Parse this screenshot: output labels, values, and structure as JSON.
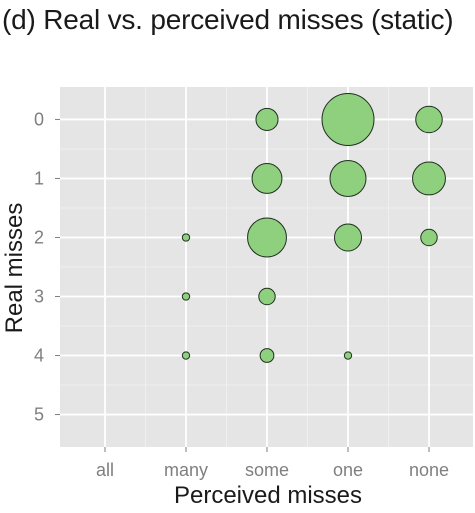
{
  "chart_data": {
    "type": "scatter",
    "title": "(d) Real vs. perceived misses (static)",
    "xlabel": "Perceived misses",
    "ylabel": "Real misses",
    "x_categories": [
      "all",
      "many",
      "some",
      "one",
      "none"
    ],
    "y_ticks": [
      "0",
      "1",
      "2",
      "3",
      "4",
      "5"
    ],
    "ylim": [
      -0.55,
      5.55
    ],
    "grid": true,
    "legend": "none",
    "point_fill": "#8fd07f",
    "point_stroke": "#1f2e1f",
    "panel_background": "#e5e5e5",
    "points": [
      {
        "x": "some",
        "y": 0,
        "size": 0.18
      },
      {
        "x": "one",
        "y": 0,
        "size": 1.0
      },
      {
        "x": "none",
        "y": 0,
        "size": 0.26
      },
      {
        "x": "some",
        "y": 1,
        "size": 0.33
      },
      {
        "x": "one",
        "y": 1,
        "size": 0.48
      },
      {
        "x": "none",
        "y": 1,
        "size": 0.4
      },
      {
        "x": "many",
        "y": 2,
        "size": 0.02
      },
      {
        "x": "some",
        "y": 2,
        "size": 0.56
      },
      {
        "x": "one",
        "y": 2,
        "size": 0.27
      },
      {
        "x": "none",
        "y": 2,
        "size": 0.1
      },
      {
        "x": "many",
        "y": 3,
        "size": 0.02
      },
      {
        "x": "some",
        "y": 3,
        "size": 0.1
      },
      {
        "x": "many",
        "y": 4,
        "size": 0.02
      },
      {
        "x": "some",
        "y": 4,
        "size": 0.07
      },
      {
        "x": "one",
        "y": 4,
        "size": 0.02
      }
    ]
  }
}
